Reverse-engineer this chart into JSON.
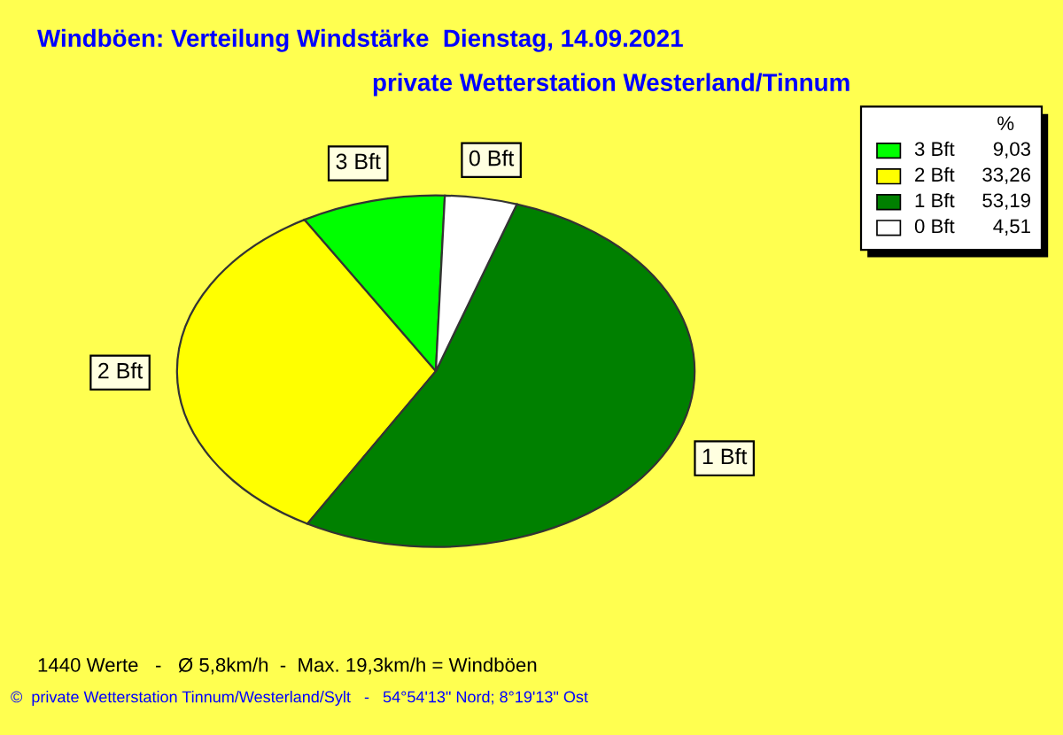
{
  "chart_data": {
    "type": "pie",
    "title": "Windböen: Verteilung Windstärke  Dienstag, 14.09.2021",
    "subtitle": "private Wetterstation Westerland/Tinnum",
    "categories": [
      "3 Bft",
      "2 Bft",
      "1 Bft",
      "0 Bft"
    ],
    "values": [
      9.03,
      33.26,
      53.19,
      4.51
    ],
    "value_labels": [
      "9,03",
      "33,26",
      "53,19",
      "4,51"
    ],
    "colors": [
      "#00ff00",
      "#ffff00",
      "#008000",
      "#ffffff"
    ],
    "legend_title": "%",
    "legend": "top right",
    "annotations": [
      "1440 Werte   -   Ø 5,8km/h  -  Max. 19,3km/h = Windböen",
      "©  private Wetterstation Tinnum/Westerland/Sylt   -   54°54'13\" Nord; 8°19'13\" Ost"
    ]
  }
}
